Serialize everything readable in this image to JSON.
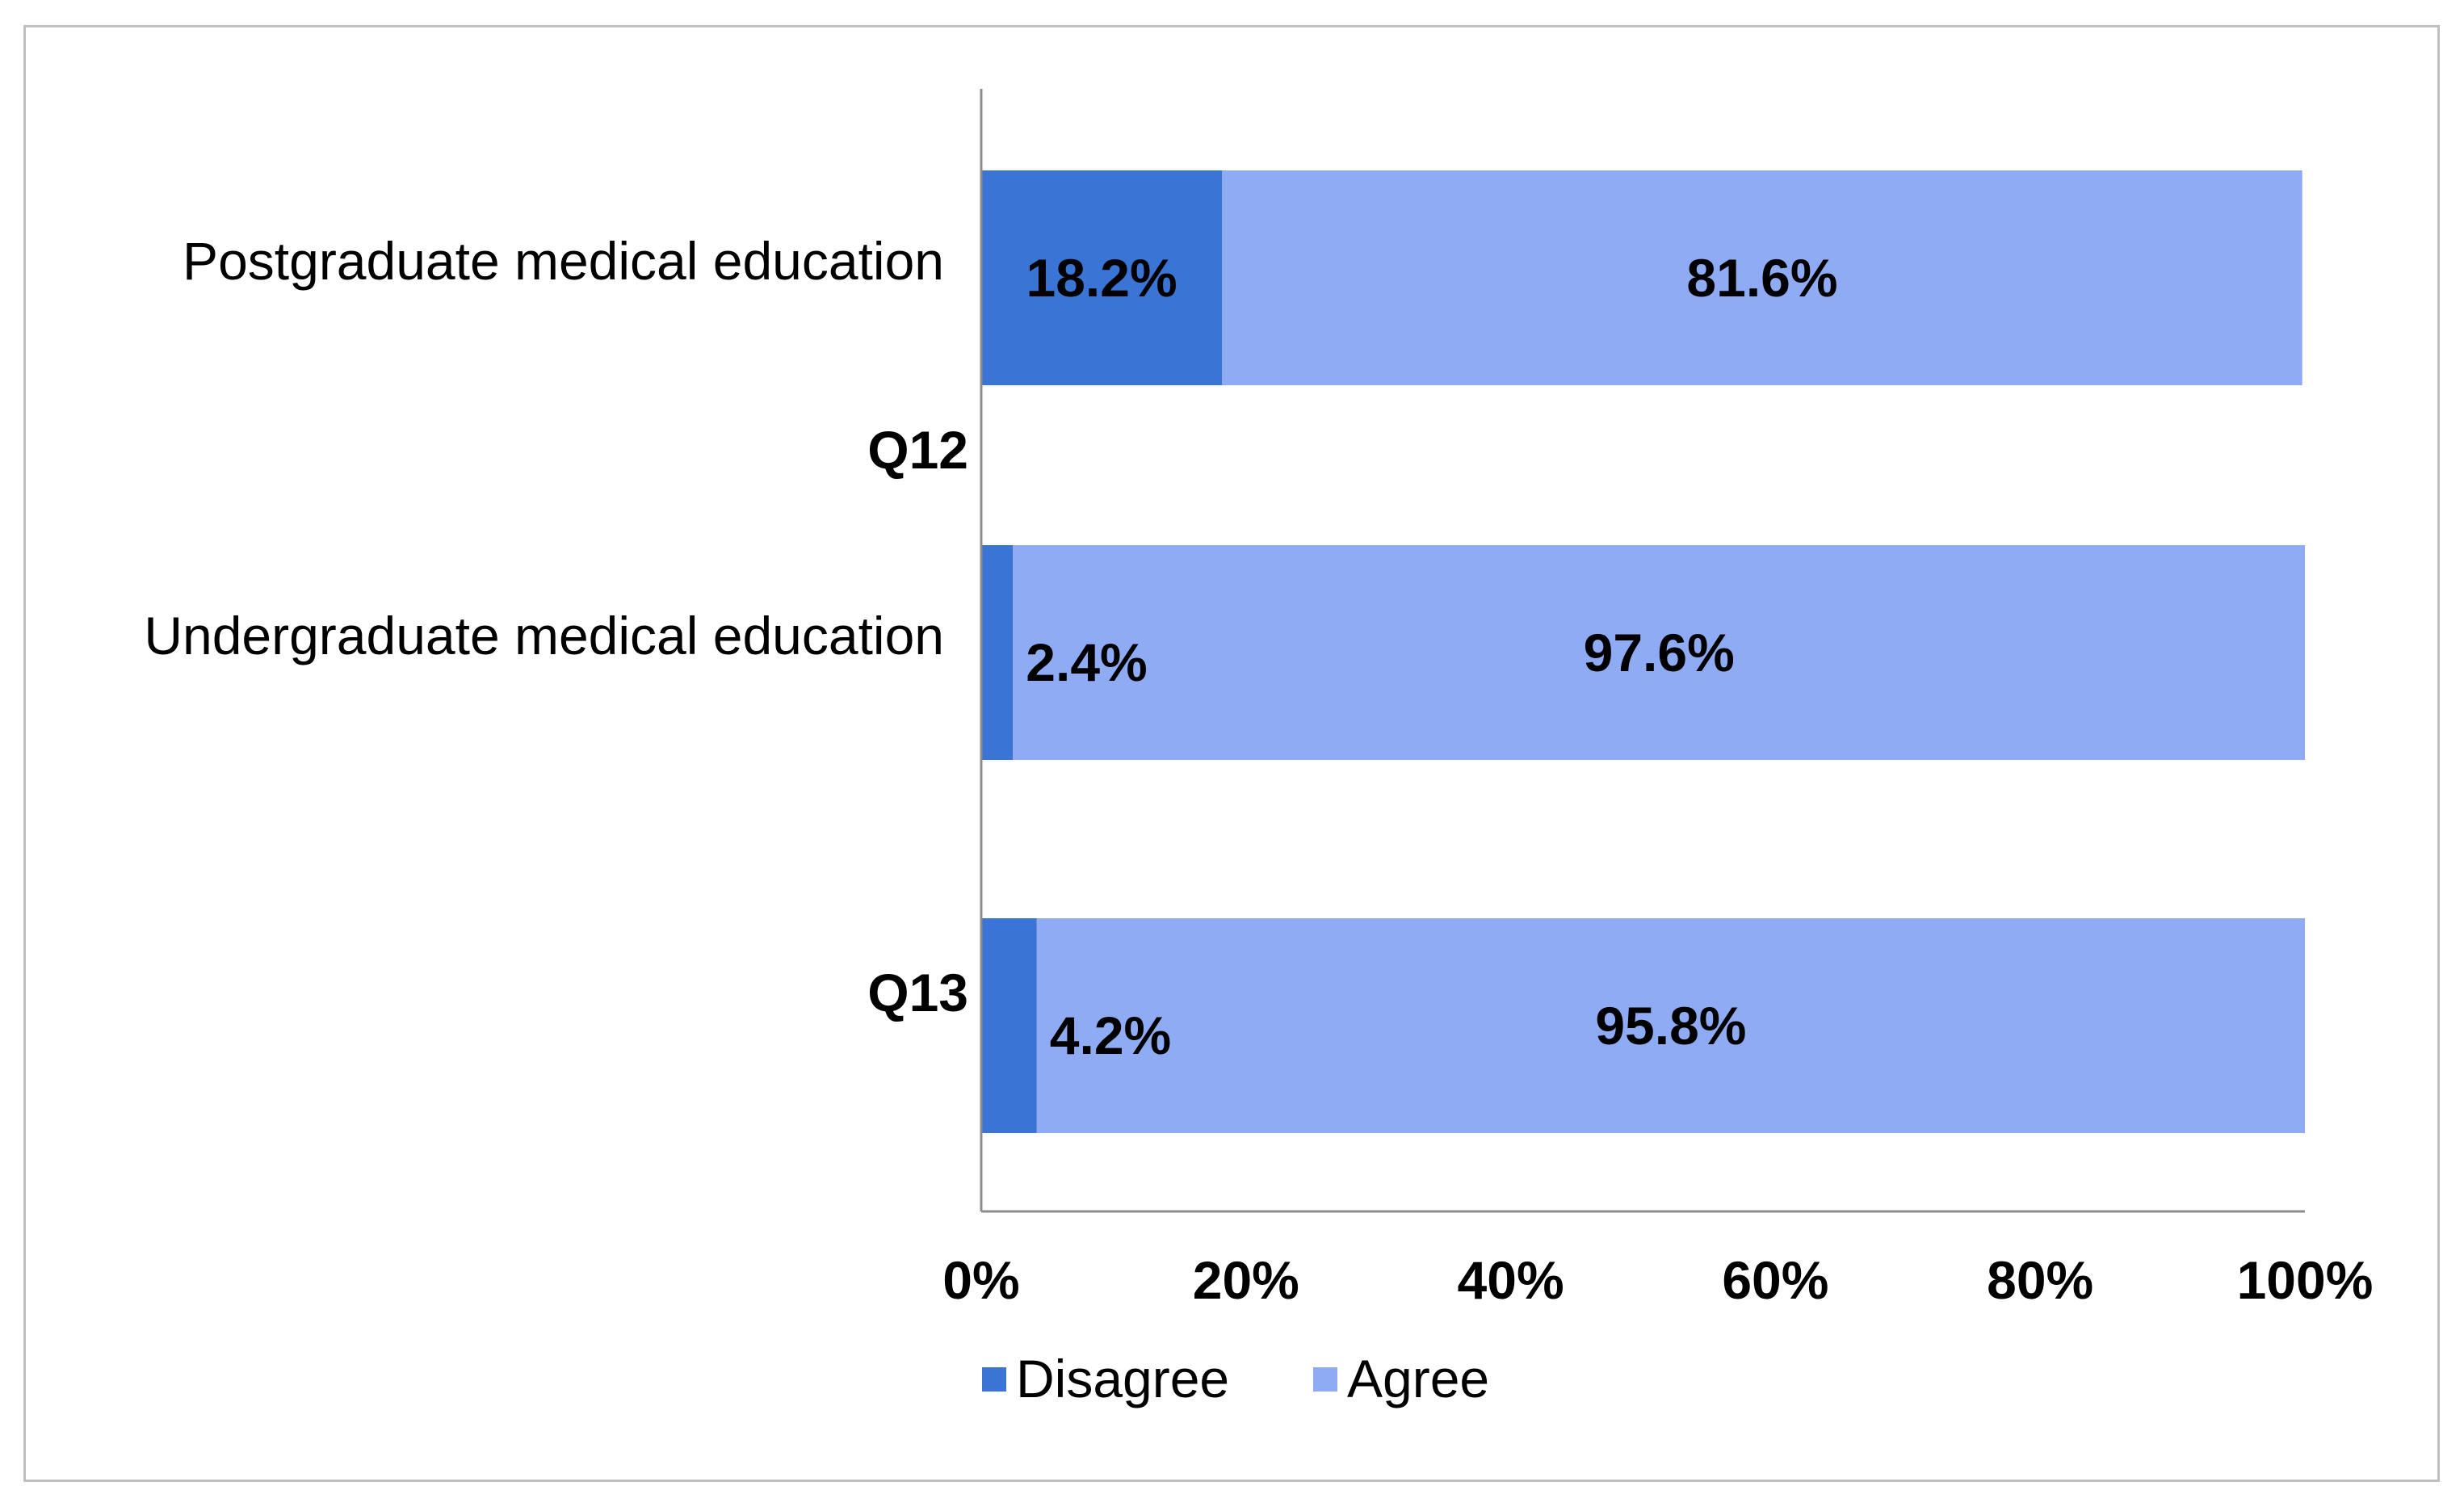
{
  "chart_data": {
    "type": "bar",
    "orientation": "horizontal",
    "stacked": true,
    "categories": [
      "Postgraduate medical education",
      "Undergraduate medical education",
      ""
    ],
    "groups": [
      {
        "label": "Q12",
        "categories": [
          0,
          1
        ]
      },
      {
        "label": "Q13",
        "categories": [
          2
        ]
      }
    ],
    "series": [
      {
        "name": "Disagree",
        "color": "#3a75d6",
        "values": [
          18.2,
          2.4,
          4.2
        ],
        "labels": [
          "18.2%",
          "2.4%",
          "4.2%"
        ]
      },
      {
        "name": "Agree",
        "color": "#8fabf4",
        "values": [
          81.6,
          97.6,
          95.8
        ],
        "labels": [
          "81.6%",
          "97.6%",
          "95.8%"
        ]
      }
    ],
    "xlim": [
      0,
      100
    ],
    "xticks": [
      "0%",
      "20%",
      "40%",
      "60%",
      "80%",
      "100%"
    ],
    "title": "",
    "xlabel": "",
    "ylabel": "",
    "grid": false,
    "legend_position": "bottom"
  }
}
